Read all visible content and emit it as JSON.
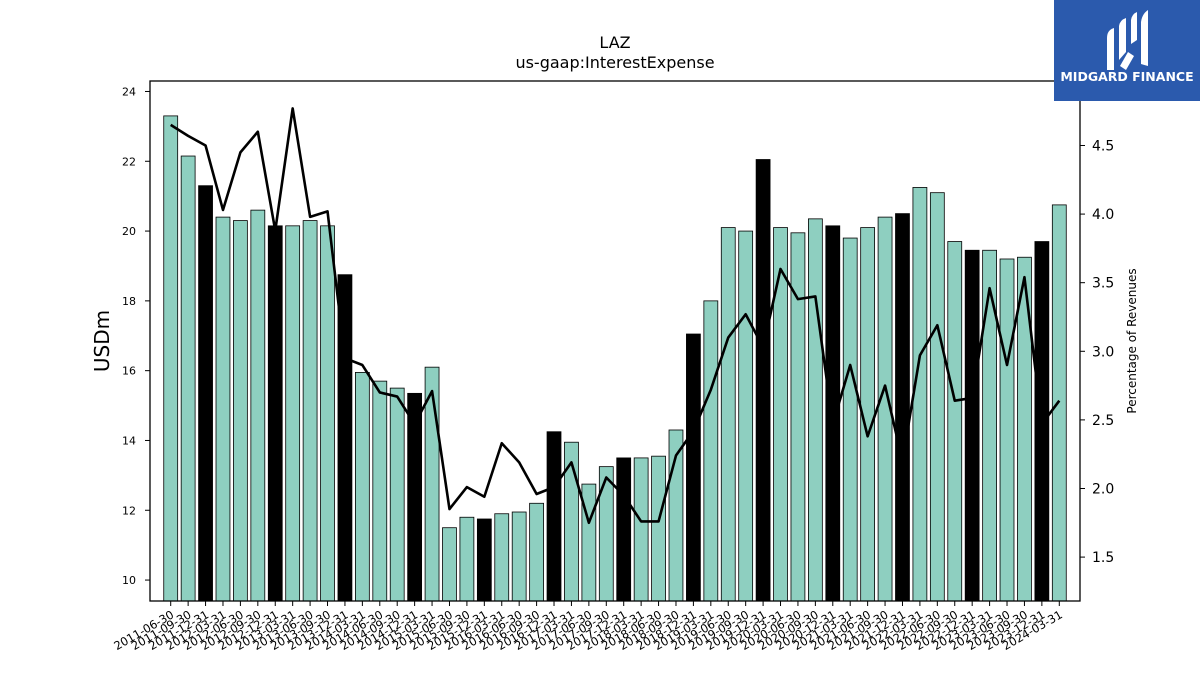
{
  "brand": {
    "name": "MIDGARD FINANCE",
    "bg_color": "#2b5aad"
  },
  "chart_data": {
    "type": "bar",
    "title": "LAZ",
    "subtitle": "us-gaap:InterestExpense",
    "ylabel": "USDm",
    "y2label": "Percentage of Revenues",
    "ylim": [
      9.4,
      24.3
    ],
    "y2lim": [
      1.18,
      4.97
    ],
    "yticks": [
      10,
      12,
      14,
      16,
      18,
      20,
      22,
      24
    ],
    "y2ticks": [
      1.5,
      2.0,
      2.5,
      3.0,
      3.5,
      4.0,
      4.5
    ],
    "bar_colors": {
      "quarter": "#8ecfc0",
      "year_end": "#000000"
    },
    "line_color": "#000000",
    "categories": [
      "2011-06-30",
      "2011-09-30",
      "2011-12-31",
      "2012-03-31",
      "2012-06-30",
      "2012-09-30",
      "2012-12-31",
      "2013-03-31",
      "2013-06-30",
      "2013-09-30",
      "2013-12-31",
      "2014-03-31",
      "2014-06-30",
      "2014-09-30",
      "2014-12-31",
      "2015-03-31",
      "2015-06-30",
      "2015-09-30",
      "2015-12-31",
      "2016-03-31",
      "2016-06-30",
      "2016-09-30",
      "2016-12-31",
      "2017-03-31",
      "2017-06-30",
      "2017-09-30",
      "2017-12-31",
      "2018-03-31",
      "2018-06-30",
      "2018-09-30",
      "2018-12-31",
      "2019-03-31",
      "2019-06-30",
      "2019-09-30",
      "2019-12-31",
      "2020-03-31",
      "2020-06-30",
      "2020-09-30",
      "2020-12-31",
      "2021-03-31",
      "2021-06-30",
      "2021-09-30",
      "2021-12-31",
      "2022-03-31",
      "2022-06-30",
      "2022-09-30",
      "2022-12-31",
      "2023-03-31",
      "2023-06-30",
      "2023-09-30",
      "2023-12-31",
      "2024-03-31"
    ],
    "year_end": [
      false,
      false,
      true,
      false,
      false,
      false,
      true,
      false,
      false,
      false,
      true,
      false,
      false,
      false,
      true,
      false,
      false,
      false,
      true,
      false,
      false,
      false,
      true,
      false,
      false,
      false,
      true,
      false,
      false,
      false,
      true,
      false,
      false,
      false,
      true,
      false,
      false,
      false,
      true,
      false,
      false,
      false,
      true,
      false,
      false,
      false,
      true,
      false,
      false,
      false,
      true,
      false
    ],
    "series": [
      {
        "name": "",
        "axis": "left",
        "kind": "bar",
        "values": [
          23.3,
          22.15,
          21.3,
          20.4,
          20.3,
          20.6,
          20.15,
          20.15,
          20.3,
          20.15,
          18.75,
          15.95,
          15.7,
          15.5,
          15.35,
          16.1,
          11.5,
          11.8,
          11.75,
          11.9,
          11.95,
          12.2,
          14.25,
          13.95,
          12.75,
          13.25,
          13.5,
          13.5,
          13.55,
          14.3,
          17.05,
          18.0,
          20.1,
          20.0,
          22.05,
          20.1,
          19.95,
          20.35,
          20.15,
          19.8,
          20.1,
          20.4,
          20.5,
          21.25,
          21.1,
          19.7,
          19.45,
          19.45,
          19.2,
          19.25,
          19.7,
          20.75
        ]
      },
      {
        "name": "",
        "axis": "right",
        "kind": "line",
        "values": [
          4.65,
          4.57,
          4.5,
          4.03,
          4.45,
          4.6,
          3.88,
          4.77,
          3.98,
          4.02,
          2.95,
          2.9,
          2.7,
          2.67,
          2.47,
          2.71,
          1.85,
          2.01,
          1.94,
          2.33,
          2.19,
          1.96,
          2.01,
          2.19,
          1.75,
          2.08,
          1.95,
          1.76,
          1.76,
          2.24,
          2.42,
          2.72,
          3.1,
          3.27,
          3.03,
          3.6,
          3.38,
          3.4,
          2.47,
          2.9,
          2.38,
          2.75,
          2.2,
          2.97,
          3.19,
          2.64,
          2.66,
          3.46,
          2.9,
          3.54,
          2.47,
          2.64
        ]
      }
    ],
    "grid": false,
    "legend": "none"
  }
}
